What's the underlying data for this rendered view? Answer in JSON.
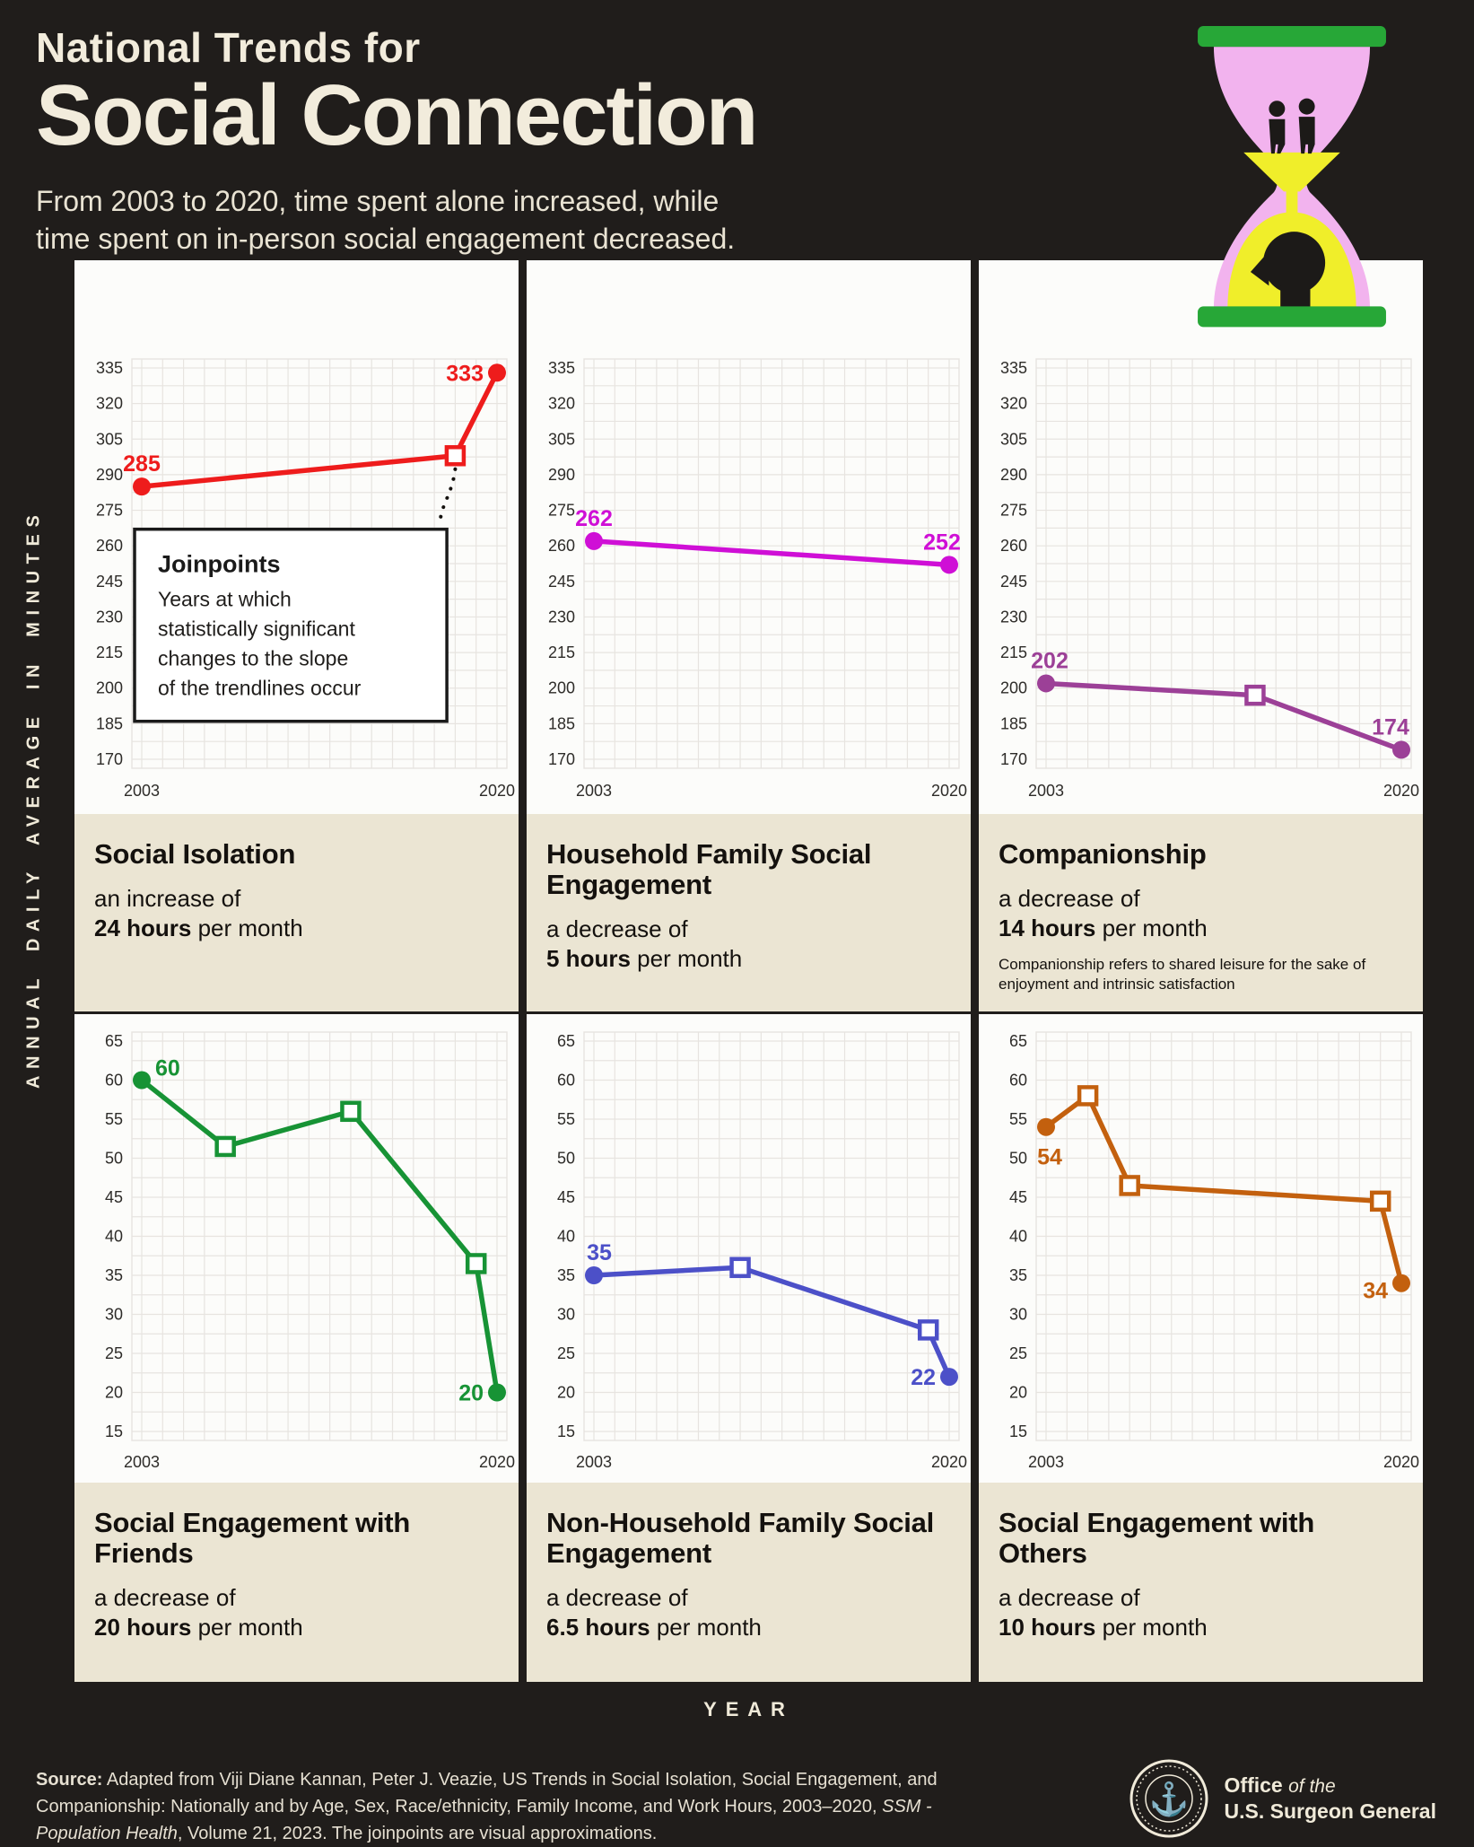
{
  "header": {
    "title_line1": "National Trends for",
    "title_line2": "Social Connection",
    "subtitle_line1": "From 2003 to 2020, time spent alone increased, while",
    "subtitle_line2": "time spent on in-person social engagement decreased."
  },
  "y_axis_label": "ANNUAL DAILY AVERAGE IN MINUTES",
  "x_axis_label": "YEAR",
  "annotation": {
    "title": "Joinpoints",
    "lines": [
      "Years at which",
      "statistically significant",
      "changes to the slope",
      "of the trendlines occur"
    ]
  },
  "colors": {
    "background": "#201d1b",
    "panel_white": "#fcfcfa",
    "caption_cream": "#ebe5d3",
    "grid_line": "#e7e4e0",
    "ink": "#14110e",
    "cream_text": "#f0ead9",
    "hourglass_green": "#27a737",
    "hourglass_pink": "#f2b3ee",
    "hourglass_yellow": "#f0ee2a",
    "silhouette": "#1c1a18",
    "series_red": "#ee1c1c",
    "series_magenta": "#cf0fd6",
    "series_purple": "#9c4097",
    "series_green": "#179335",
    "series_blue": "#4c50c8",
    "series_orange": "#c3600e"
  },
  "chart_data": [
    {
      "type": "line",
      "title": "Social Isolation",
      "caption_lead": "an increase of",
      "caption_bold": "24 hours",
      "caption_tail": " per month",
      "color": "#ee1c1c",
      "xlim": [
        2003,
        2020
      ],
      "xticks": [
        "2003",
        "2020"
      ],
      "ylim": [
        170,
        335
      ],
      "yticks": [
        335,
        320,
        305,
        290,
        275,
        260,
        245,
        230,
        215,
        200,
        185,
        170
      ],
      "grid": true,
      "annotation_box": true,
      "points": [
        {
          "x": 2003,
          "y": 285,
          "marker": "circle",
          "label": "285",
          "side": "above"
        },
        {
          "x": 2018,
          "y": 298,
          "marker": "square",
          "joinpoint": true
        },
        {
          "x": 2020,
          "y": 333,
          "marker": "circle",
          "label": "333",
          "side": "left"
        }
      ]
    },
    {
      "type": "line",
      "title": "Household Family Social Engagement",
      "caption_lead": "a decrease of",
      "caption_bold": "5 hours",
      "caption_tail": " per month",
      "color": "#cf0fd6",
      "xlim": [
        2003,
        2020
      ],
      "xticks": [
        "2003",
        "2020"
      ],
      "ylim": [
        170,
        335
      ],
      "yticks": [
        335,
        320,
        305,
        290,
        275,
        260,
        245,
        230,
        215,
        200,
        185,
        170
      ],
      "grid": true,
      "annotation_box": false,
      "points": [
        {
          "x": 2003,
          "y": 262,
          "marker": "circle",
          "label": "262",
          "side": "above"
        },
        {
          "x": 2020,
          "y": 252,
          "marker": "circle",
          "label": "252",
          "side": "above",
          "ldx": -8
        }
      ]
    },
    {
      "type": "line",
      "title": "Companionship",
      "caption_lead": "a decrease of",
      "caption_bold": "14 hours",
      "caption_tail": " per month",
      "footnote": "Companionship refers to shared leisure for the sake of enjoyment and intrinsic satisfaction",
      "color": "#9c4097",
      "xlim": [
        2003,
        2020
      ],
      "xticks": [
        "2003",
        "2020"
      ],
      "ylim": [
        170,
        335
      ],
      "yticks": [
        335,
        320,
        305,
        290,
        275,
        260,
        245,
        230,
        215,
        200,
        185,
        170
      ],
      "grid": true,
      "annotation_box": false,
      "points": [
        {
          "x": 2003,
          "y": 202,
          "marker": "circle",
          "label": "202",
          "side": "above",
          "ldx": 4
        },
        {
          "x": 2013,
          "y": 197,
          "marker": "square",
          "joinpoint": true
        },
        {
          "x": 2020,
          "y": 174,
          "marker": "circle",
          "label": "174",
          "side": "above",
          "ldx": -12
        }
      ]
    },
    {
      "type": "line",
      "title": "Social Engagement with Friends",
      "caption_lead": "a decrease of",
      "caption_bold": "20 hours",
      "caption_tail": " per month",
      "color": "#179335",
      "xlim": [
        2003,
        2020
      ],
      "xticks": [
        "2003",
        "2020"
      ],
      "ylim": [
        15,
        65
      ],
      "yticks": [
        65,
        60,
        55,
        50,
        45,
        40,
        35,
        30,
        25,
        20,
        15
      ],
      "grid": true,
      "annotation_box": false,
      "points": [
        {
          "x": 2003,
          "y": 60,
          "marker": "circle",
          "label": "60",
          "side": "right",
          "ldy": -8
        },
        {
          "x": 2007,
          "y": 51.5,
          "marker": "square",
          "joinpoint": true
        },
        {
          "x": 2013,
          "y": 56,
          "marker": "square",
          "joinpoint": true
        },
        {
          "x": 2019,
          "y": 36.5,
          "marker": "square",
          "joinpoint": true
        },
        {
          "x": 2020,
          "y": 20,
          "marker": "circle",
          "label": "20",
          "side": "left"
        }
      ]
    },
    {
      "type": "line",
      "title": "Non-Household Family Social Engagement",
      "caption_lead": "a decrease of",
      "caption_bold": "6.5 hours",
      "caption_tail": " per month",
      "color": "#4c50c8",
      "xlim": [
        2003,
        2020
      ],
      "xticks": [
        "2003",
        "2020"
      ],
      "ylim": [
        15,
        65
      ],
      "yticks": [
        65,
        60,
        55,
        50,
        45,
        40,
        35,
        30,
        25,
        20,
        15
      ],
      "grid": true,
      "annotation_box": false,
      "points": [
        {
          "x": 2003,
          "y": 35,
          "marker": "circle",
          "label": "35",
          "side": "above",
          "ldx": 6
        },
        {
          "x": 2010,
          "y": 36,
          "marker": "square",
          "joinpoint": true
        },
        {
          "x": 2019,
          "y": 28,
          "marker": "square",
          "joinpoint": true
        },
        {
          "x": 2020,
          "y": 22,
          "marker": "circle",
          "label": "22",
          "side": "left"
        }
      ]
    },
    {
      "type": "line",
      "title": "Social Engagement with Others",
      "caption_lead": "a decrease of",
      "caption_bold": "10 hours",
      "caption_tail": " per month",
      "color": "#c3600e",
      "xlim": [
        2003,
        2020
      ],
      "xticks": [
        "2003",
        "2020"
      ],
      "ylim": [
        15,
        65
      ],
      "yticks": [
        65,
        60,
        55,
        50,
        45,
        40,
        35,
        30,
        25,
        20,
        15
      ],
      "grid": true,
      "annotation_box": false,
      "points": [
        {
          "x": 2003,
          "y": 54,
          "marker": "circle",
          "label": "54",
          "side": "below",
          "ldx": 4
        },
        {
          "x": 2005,
          "y": 58,
          "marker": "square",
          "joinpoint": true
        },
        {
          "x": 2007,
          "y": 46.5,
          "marker": "square",
          "joinpoint": true
        },
        {
          "x": 2019,
          "y": 44.5,
          "marker": "square",
          "joinpoint": true
        },
        {
          "x": 2020,
          "y": 34,
          "marker": "circle",
          "label": "34",
          "side": "left",
          "ldy": 8
        }
      ]
    }
  ],
  "footer": {
    "source_label": "Source:",
    "source_part1": " Adapted from Viji Diane Kannan, Peter J. Veazie, US Trends in Social Isolation, Social Engagement, and Companionship: Nationally and by Age, Sex, Race/ethnicity, Family Income, and Work Hours, 2003–2020, ",
    "source_italic": "SSM - Population Health",
    "source_part2": ", Volume 21, 2023. The joinpoints are visual approximations.",
    "logo_office": "Office",
    "logo_of_the": "of the",
    "logo_line2": "U.S. Surgeon General"
  }
}
